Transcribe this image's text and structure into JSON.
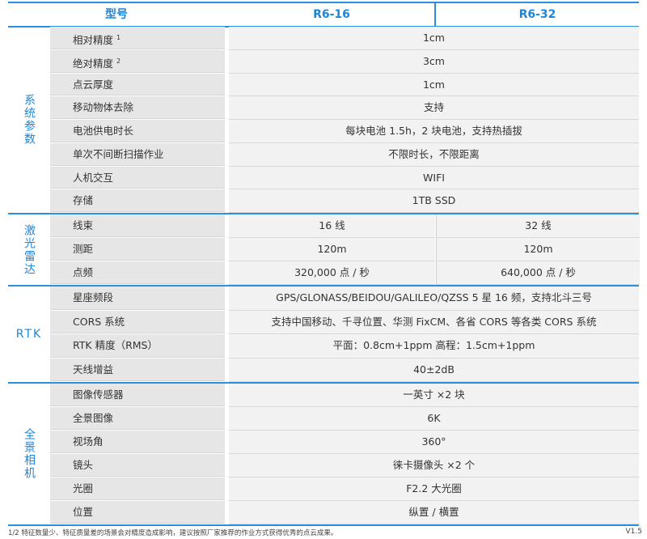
{
  "header": {
    "model_label": "型号",
    "col1": "R6-16",
    "col2": "R6-32"
  },
  "sections": [
    {
      "category": "系统参数",
      "rows": [
        {
          "param": "相对精度",
          "sup": "1",
          "value": "1cm"
        },
        {
          "param": "绝对精度",
          "sup": "2",
          "value": "3cm"
        },
        {
          "param": "点云厚度",
          "value": "1cm"
        },
        {
          "param": "移动物体去除",
          "value": "支持"
        },
        {
          "param": "电池供电时长",
          "value": "每块电池 1.5h，2 块电池，支持热插拔"
        },
        {
          "param": "单次不间断扫描作业",
          "value": "不限时长，不限距离"
        },
        {
          "param": "人机交互",
          "value": "WIFI"
        },
        {
          "param": "存储",
          "value": "1TB  SSD"
        }
      ]
    },
    {
      "category": "激光雷达",
      "rows": [
        {
          "param": "线束",
          "value_r6_16": "16 线",
          "value_r6_32": "32 线"
        },
        {
          "param": "测距",
          "value_r6_16": "120m",
          "value_r6_32": "120m"
        },
        {
          "param": "点频",
          "value_r6_16": "320,000 点 / 秒",
          "value_r6_32": "640,000 点 / 秒"
        }
      ]
    },
    {
      "category": "RTK",
      "rows": [
        {
          "param": "星座频段",
          "value": "GPS/GLONASS/BEIDOU/GALILEO/QZSS  5 星 16 频，支持北斗三号"
        },
        {
          "param": "CORS 系统",
          "value": "支持中国移动、千寻位置、华测 FixCM、各省 CORS 等各类 CORS 系统"
        },
        {
          "param": "RTK 精度（RMS）",
          "value": "平面：0.8cm+1ppm  高程：1.5cm+1ppm"
        },
        {
          "param": "天线增益",
          "value": "40±2dB"
        }
      ]
    },
    {
      "category": "全景相机",
      "rows": [
        {
          "param": "图像传感器",
          "value": "一英寸 ×2 块"
        },
        {
          "param": "全景图像",
          "value": "6K"
        },
        {
          "param": "视场角",
          "value": "360°"
        },
        {
          "param": "镜头",
          "value": "徕卡摄像头 ×2 个"
        },
        {
          "param": "光圈",
          "value": "F2.2 大光圈"
        },
        {
          "param": "位置",
          "value": "纵置 / 横置"
        }
      ]
    }
  ],
  "footer": {
    "note": "1/2 特征数量少、特征质量差的场景会对精度造成影响，建议按照厂家推荐的作业方式获得优秀的点云成果。",
    "version": "V1.5"
  },
  "colors": {
    "accent": "#1a86dc",
    "param_bg": "#e6e6e6",
    "value_bg": "#f2f2f2"
  }
}
